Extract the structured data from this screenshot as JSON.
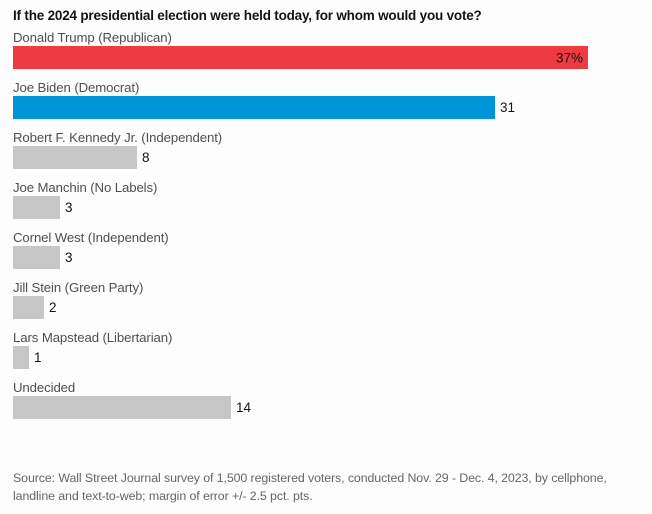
{
  "chart_data": {
    "type": "bar",
    "orientation": "horizontal",
    "title": "If the 2024 presidential election were held today, for whom would you vote?",
    "categories": [
      "Donald Trump (Republican)",
      "Joe Biden (Democrat)",
      "Robert F. Kennedy Jr. (Independent)",
      "Joe Manchin (No Labels)",
      "Cornel West (Independent)",
      "Jill Stein (Green Party)",
      "Lars Mapstead (Libertarian)",
      "Undecided"
    ],
    "values": [
      37,
      31,
      8,
      3,
      3,
      2,
      1,
      14
    ],
    "value_labels": [
      "37%",
      "31",
      "8",
      "3",
      "3",
      "2",
      "1",
      "14"
    ],
    "value_label_inside": [
      true,
      false,
      false,
      false,
      false,
      false,
      false,
      false
    ],
    "bar_colors": [
      "#ee3b43",
      "#0095d8",
      "#c6c6c6",
      "#c6c6c6",
      "#c6c6c6",
      "#c6c6c6",
      "#c6c6c6",
      "#c6c6c6"
    ],
    "xlim": [
      0,
      37
    ],
    "grid": false,
    "legend": "none",
    "axes_shown": false
  },
  "palette": {
    "republican_red": "#ee3b43",
    "democrat_blue": "#0095d8",
    "neutral_gray": "#c6c6c6",
    "title_text": "#141414",
    "label_text": "#4f4f4f",
    "source_text": "#666666",
    "background": "#fdfdfd"
  },
  "footer": {
    "source_text": "Source: Wall Street Journal survey of 1,500 registered voters, conducted Nov. 29 - Dec. 4, 2023, by cellphone, landline and text-to-web; margin of error +/- 2.5 pct. pts."
  }
}
